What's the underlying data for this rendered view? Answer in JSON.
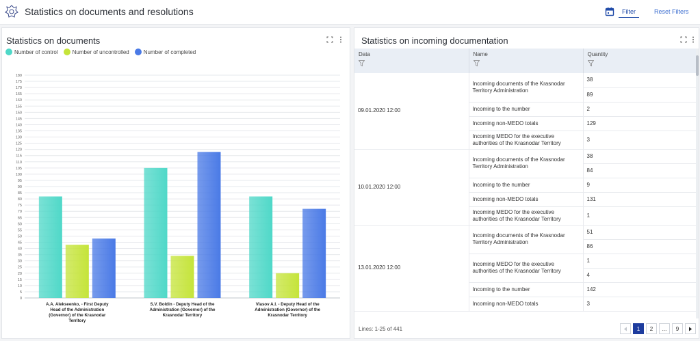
{
  "app": {
    "title": "Statistics on documents and resolutions"
  },
  "toolbar": {
    "filter_label": "Filter",
    "reset_label": "Reset Filters"
  },
  "left_panel": {
    "title": "Statistics on documents",
    "legend": [
      {
        "label": "Number of control",
        "color": "#4fd8c8"
      },
      {
        "label": "Number of uncontrolled",
        "color": "#c5e43a"
      },
      {
        "label": "Number of completed",
        "color": "#4a7ae6"
      }
    ]
  },
  "chart_data": {
    "type": "bar",
    "categories": [
      [
        "A.A. Alekseenko, - First Deputy",
        "Head of the Administration",
        "(Governor) of the Krasnodar",
        "Territory"
      ],
      [
        "S.V. Boldin - Deputy Head of the",
        "Administration (Governor) of the",
        "Krasnodar Territory"
      ],
      [
        "Vlasov A.I. - Deputy Head of the",
        "Administration (Governor) of the",
        "Krasnodar Territory"
      ]
    ],
    "series": [
      {
        "name": "Number of control",
        "values": [
          82,
          105,
          82
        ]
      },
      {
        "name": "Number of uncontrolled",
        "values": [
          43,
          34,
          20
        ]
      },
      {
        "name": "Number of completed",
        "values": [
          48,
          118,
          72
        ]
      }
    ],
    "ylim": [
      0,
      180
    ],
    "ytick_step": 5,
    "grid": true,
    "legend_position": "top-left"
  },
  "right_panel": {
    "title": "Statistics on incoming documentation",
    "columns": [
      "Data",
      "Name",
      "Quantity"
    ],
    "groups": [
      {
        "date": "09.01.2020 12:00",
        "items": [
          {
            "name": "Incoming documents of the Krasnodar Territory Administration",
            "quantities": [
              "38",
              "89"
            ]
          },
          {
            "name": "Incoming to the number",
            "quantities": [
              "2"
            ]
          },
          {
            "name": "Incoming non-MEDO totals",
            "quantities": [
              "129"
            ]
          },
          {
            "name": "Incoming MEDO for the executive authorities of the Krasnodar Territory",
            "quantities": [
              "3"
            ]
          }
        ]
      },
      {
        "date": "10.01.2020 12:00",
        "items": [
          {
            "name": "Incoming documents of the Krasnodar Territory Administration",
            "quantities": [
              "38",
              "84"
            ]
          },
          {
            "name": "Incoming to the number",
            "quantities": [
              "9"
            ]
          },
          {
            "name": "Incoming non-MEDO totals",
            "quantities": [
              "131"
            ]
          },
          {
            "name": "Incoming MEDO for the executive authorities of the Krasnodar Territory",
            "quantities": [
              "1"
            ]
          }
        ]
      },
      {
        "date": "13.01.2020 12:00",
        "items": [
          {
            "name": "Incoming documents of the Krasnodar Territory Administration",
            "quantities": [
              "51",
              "86"
            ]
          },
          {
            "name": "Incoming MEDO for the executive authorities of the Krasnodar Territory",
            "quantities": [
              "1",
              "4"
            ]
          },
          {
            "name": "Incoming to the number",
            "quantities": [
              "142"
            ]
          },
          {
            "name": "Incoming non-MEDO totals",
            "quantities": [
              "3"
            ]
          }
        ]
      }
    ],
    "footer": {
      "lines_label": "Lines: 1-25 of 441"
    },
    "pager": [
      "1",
      "2",
      "...",
      "9"
    ]
  }
}
